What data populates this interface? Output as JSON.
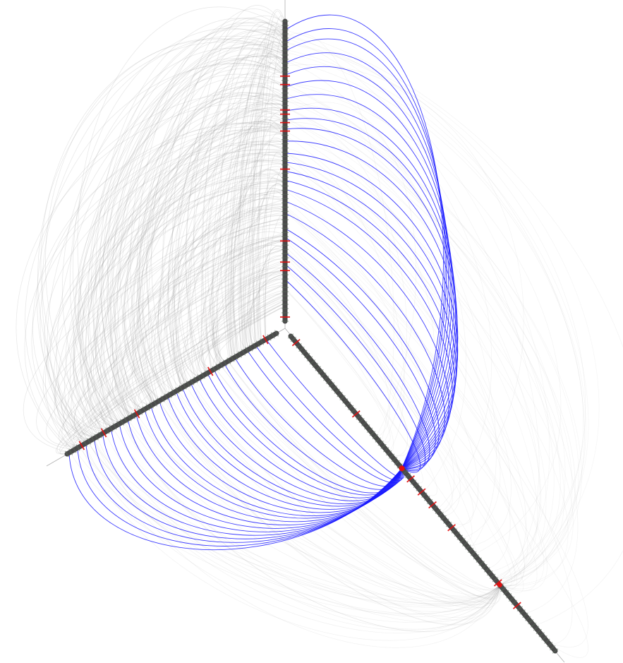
{
  "diagram": {
    "type": "hive-plot",
    "axes": [
      {
        "id": "axis-top",
        "direction": "up"
      },
      {
        "id": "axis-left",
        "direction": "down-left"
      },
      {
        "id": "axis-right",
        "direction": "down-right"
      }
    ],
    "highlighted_node": {
      "axis": "axis-right",
      "color": "#ff0000"
    },
    "colors": {
      "axis_line": "#4a4a4a",
      "node_marker": "#5a6a5a",
      "highlight_node": "#e01010",
      "edge_default": "#9a9a9a",
      "edge_highlight": "#1a1aff",
      "guide_line": "#b0b0b0"
    },
    "edge_groups": [
      {
        "name": "top-left",
        "style": "default"
      },
      {
        "name": "top-right-highlight",
        "style": "highlight"
      },
      {
        "name": "left-right-highlight",
        "style": "highlight"
      },
      {
        "name": "right-right",
        "style": "default"
      }
    ]
  }
}
